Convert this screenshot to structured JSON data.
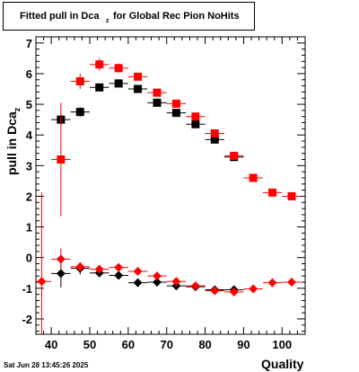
{
  "title": {
    "main": "Fitted pull in Dca",
    "sub": "z",
    "rest": " for Global Rec Pion NoHits"
  },
  "ylabel": {
    "main": "pull in Dca",
    "sub": "z"
  },
  "xlabel": "Quality",
  "datestamp": "Sat Jun 28 13:45:26 2025",
  "colors": {
    "series_black": "#000000",
    "series_red": "#ff0000",
    "frame": "#000000",
    "grid": "#dddddd"
  },
  "chart_data": {
    "type": "scatter",
    "xlim": [
      36,
      106
    ],
    "ylim": [
      -2.5,
      7.2
    ],
    "grid": false,
    "x_ticks": [
      40,
      50,
      60,
      70,
      80,
      90,
      100
    ],
    "y_ticks": [
      -2,
      -1,
      0,
      1,
      2,
      3,
      4,
      5,
      6,
      7
    ],
    "series": [
      {
        "marker": "square",
        "color": "#000000",
        "points": [
          {
            "x": 42.5,
            "y": 4.5,
            "yerr": 0.2
          },
          {
            "x": 47.5,
            "y": 4.75,
            "yerr": 0.15
          },
          {
            "x": 52.5,
            "y": 5.55,
            "yerr": 0.12
          },
          {
            "x": 57.5,
            "y": 5.68,
            "yerr": 0.1
          },
          {
            "x": 62.5,
            "y": 5.5,
            "yerr": 0.08
          },
          {
            "x": 67.5,
            "y": 5.05,
            "yerr": 0.08
          },
          {
            "x": 72.5,
            "y": 4.72,
            "yerr": 0.08
          },
          {
            "x": 77.5,
            "y": 4.35,
            "yerr": 0.08
          },
          {
            "x": 82.5,
            "y": 3.85,
            "yerr": 0.08
          },
          {
            "x": 87.5,
            "y": 3.28,
            "yerr": 0.08
          }
        ]
      },
      {
        "marker": "square",
        "color": "#ff0000",
        "points": [
          {
            "x": 42.5,
            "y": 3.2,
            "yerr": 1.85
          },
          {
            "x": 47.5,
            "y": 5.75,
            "yerr": 0.25
          },
          {
            "x": 52.5,
            "y": 6.3,
            "yerr": 0.2
          },
          {
            "x": 57.5,
            "y": 6.18,
            "yerr": 0.15
          },
          {
            "x": 62.5,
            "y": 5.9,
            "yerr": 0.1
          },
          {
            "x": 67.5,
            "y": 5.38,
            "yerr": 0.08
          },
          {
            "x": 72.5,
            "y": 5.02,
            "yerr": 0.08
          },
          {
            "x": 77.5,
            "y": 4.6,
            "yerr": 0.08
          },
          {
            "x": 82.5,
            "y": 4.05,
            "yerr": 0.08
          },
          {
            "x": 87.5,
            "y": 3.32,
            "yerr": 0.08
          },
          {
            "x": 92.5,
            "y": 2.6,
            "yerr": 0.08
          },
          {
            "x": 97.5,
            "y": 2.12,
            "yerr": 0.08
          },
          {
            "x": 102.5,
            "y": 2.0,
            "yerr": 0.08
          }
        ]
      },
      {
        "marker": "diamond",
        "color": "#000000",
        "points": [
          {
            "x": 42.5,
            "y": -0.52,
            "yerr": 0.45
          },
          {
            "x": 47.5,
            "y": -0.35,
            "yerr": 0.2
          },
          {
            "x": 52.5,
            "y": -0.5,
            "yerr": 0.12
          },
          {
            "x": 57.5,
            "y": -0.58,
            "yerr": 0.1
          },
          {
            "x": 62.5,
            "y": -0.82,
            "yerr": 0.08
          },
          {
            "x": 67.5,
            "y": -0.8,
            "yerr": 0.07
          },
          {
            "x": 72.5,
            "y": -0.92,
            "yerr": 0.07
          },
          {
            "x": 77.5,
            "y": -0.95,
            "yerr": 0.07
          },
          {
            "x": 82.5,
            "y": -1.05,
            "yerr": 0.07
          },
          {
            "x": 87.5,
            "y": -1.05,
            "yerr": 0.07
          }
        ]
      },
      {
        "marker": "diamond",
        "color": "#ff0000",
        "points": [
          {
            "x": 37.5,
            "y": -0.78,
            "yerr": 2.9
          },
          {
            "x": 42.5,
            "y": -0.05,
            "yerr": 0.35
          },
          {
            "x": 47.5,
            "y": -0.3,
            "yerr": 0.15
          },
          {
            "x": 52.5,
            "y": -0.38,
            "yerr": 0.1
          },
          {
            "x": 57.5,
            "y": -0.32,
            "yerr": 0.08
          },
          {
            "x": 62.5,
            "y": -0.45,
            "yerr": 0.07
          },
          {
            "x": 67.5,
            "y": -0.6,
            "yerr": 0.07
          },
          {
            "x": 72.5,
            "y": -0.78,
            "yerr": 0.06
          },
          {
            "x": 77.5,
            "y": -0.92,
            "yerr": 0.06
          },
          {
            "x": 82.5,
            "y": -1.08,
            "yerr": 0.06
          },
          {
            "x": 87.5,
            "y": -1.12,
            "yerr": 0.06
          },
          {
            "x": 92.5,
            "y": -1.02,
            "yerr": 0.06
          },
          {
            "x": 97.5,
            "y": -0.82,
            "yerr": 0.06
          },
          {
            "x": 102.5,
            "y": -0.8,
            "yerr": 0.06
          }
        ]
      }
    ]
  }
}
